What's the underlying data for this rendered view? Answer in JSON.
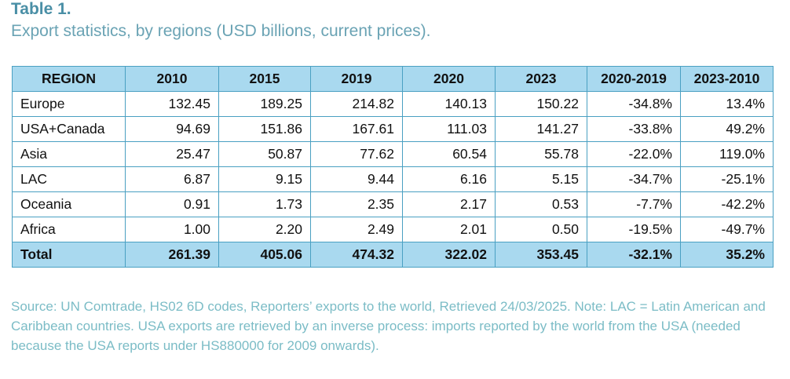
{
  "title": "Table 1.",
  "caption": "Export statistics, by regions (USD billions, current prices).",
  "table": {
    "headers": [
      "REGION",
      "2010",
      "2015",
      "2019",
      "2020",
      "2023",
      "2020-2019",
      "2023-2010"
    ],
    "rows": [
      [
        "Europe",
        "132.45",
        "189.25",
        "214.82",
        "140.13",
        "150.22",
        "-34.8%",
        "13.4%"
      ],
      [
        "USA+Canada",
        "94.69",
        "151.86",
        "167.61",
        "111.03",
        "141.27",
        "-33.8%",
        "49.2%"
      ],
      [
        "Asia",
        "25.47",
        "50.87",
        "77.62",
        "60.54",
        "55.78",
        "-22.0%",
        "119.0%"
      ],
      [
        "LAC",
        "6.87",
        "9.15",
        "9.44",
        "6.16",
        "5.15",
        "-34.7%",
        "-25.1%"
      ],
      [
        "Oceania",
        "0.91",
        "1.73",
        "2.35",
        "2.17",
        "0.53",
        "-7.7%",
        "-42.2%"
      ],
      [
        "Africa",
        "1.00",
        "2.20",
        "2.49",
        "2.01",
        "0.50",
        "-19.5%",
        "-49.7%"
      ],
      [
        "Total",
        "261.39",
        "405.06",
        "474.32",
        "322.02",
        "353.45",
        "-32.1%",
        "35.2%"
      ]
    ]
  },
  "source_note": "Source: UN Comtrade, HS02 6D codes, Reporters’ exports to the world, Retrieved 24/03/2025. Note: LAC = Latin American and Caribbean countries. USA exports are retrieved by an inverse process: imports reported by the world from the USA (needed because the USA reports under HS880000 for 2009 onwards).",
  "colors": {
    "title": "#4a8fa6",
    "header_bg": "#a9d9ef",
    "border": "#4aa0c2",
    "note": "#7bbcc6"
  }
}
